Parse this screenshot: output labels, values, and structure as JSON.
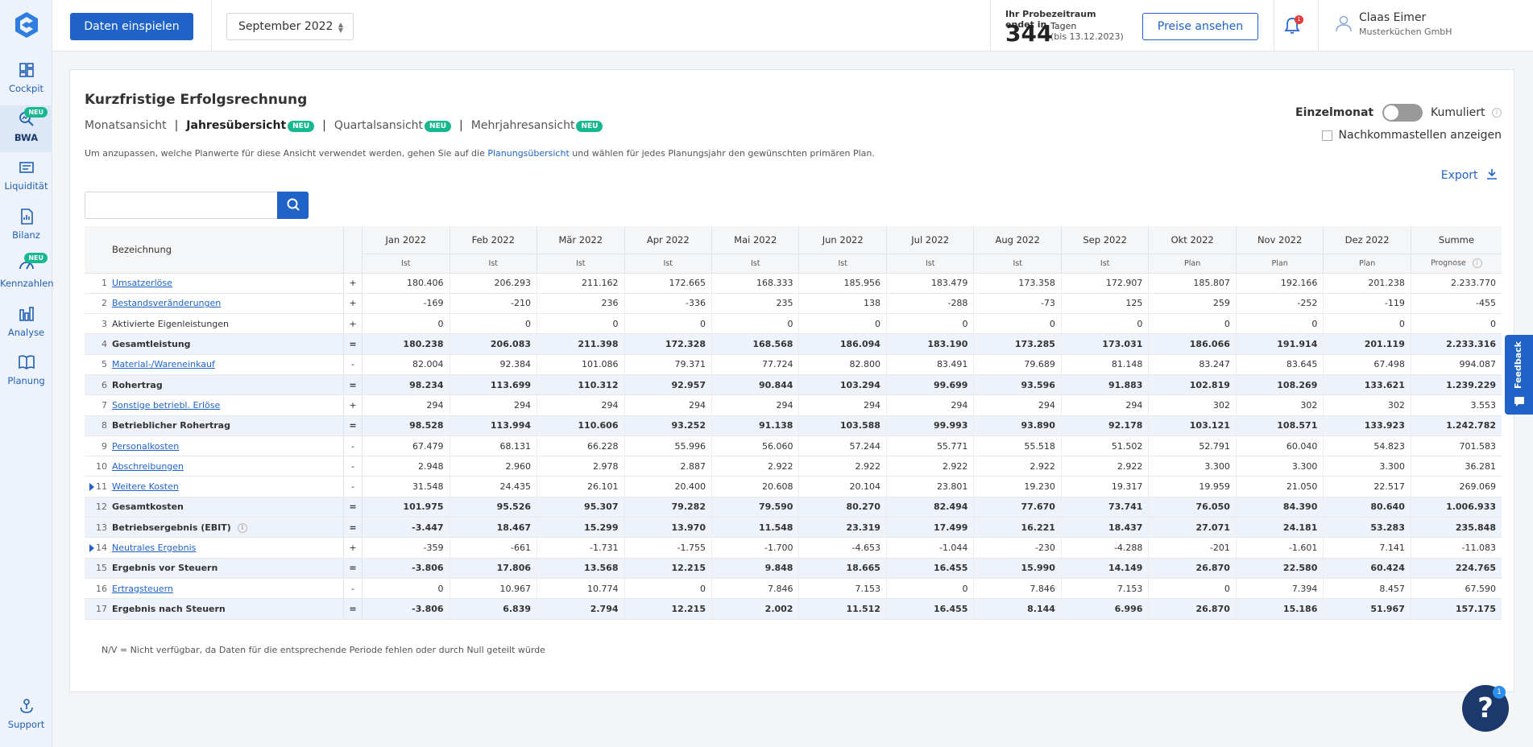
{
  "sidebar": {
    "items": [
      {
        "label": "Cockpit",
        "icon": "dashboard-icon"
      },
      {
        "label": "BWA",
        "icon": "search-chart-icon",
        "badge": "NEU",
        "active": true
      },
      {
        "label": "Liquidität",
        "icon": "cash-icon"
      },
      {
        "label": "Bilanz",
        "icon": "document-icon"
      },
      {
        "label": "Kennzahlen",
        "icon": "gauge-icon",
        "badge": "NEU"
      },
      {
        "label": "Analyse",
        "icon": "bar-chart-icon"
      },
      {
        "label": "Planung",
        "icon": "book-icon"
      }
    ],
    "support": "Support"
  },
  "topbar": {
    "import_button": "Daten einspielen",
    "month": "September 2022",
    "trial_line1": "Ihr Probezeitraum endet in",
    "trial_days": "344",
    "trial_unit": "Tagen",
    "trial_date": "(bis 13.12.2023)",
    "prices_button": "Preise ansehen",
    "notifications": "1",
    "user_name": "Claas Eimer",
    "user_company": "Musterküchen GmbH"
  },
  "report": {
    "title": "Kurzfristige Erfolgsrechnung",
    "views": [
      {
        "label": "Monatsansicht",
        "badge": ""
      },
      {
        "label": "Jahresübersicht",
        "badge": "NEU",
        "active": true
      },
      {
        "label": "Quartalsansicht",
        "badge": "NEU"
      },
      {
        "label": "Mehrjahresansicht",
        "badge": "NEU"
      }
    ],
    "hint_before": "Um anzupassen, welche Planwerte für diese Ansicht verwendet werden, gehen Sie auf die ",
    "hint_link": "Planungsübersicht",
    "hint_after": " und wählen für jedes Planungsjahr den gewünschten primären Plan.",
    "toggle_left": "Einzelmonat",
    "toggle_right": "Kumuliert",
    "decimals_label": "Nachkommastellen anzeigen",
    "export_label": "Export",
    "footnote": "N/V = Nicht verfügbar, da Daten für die entsprechende Periode fehlen oder durch Null geteilt würde"
  },
  "table": {
    "header_label": "Bezeichnung",
    "columns": [
      "Jan 2022",
      "Feb 2022",
      "Mär 2022",
      "Apr 2022",
      "Mai 2022",
      "Jun 2022",
      "Jul 2022",
      "Aug 2022",
      "Sep 2022",
      "Okt 2022",
      "Nov 2022",
      "Dez 2022",
      "Summe"
    ],
    "subheaders": [
      "Ist",
      "Ist",
      "Ist",
      "Ist",
      "Ist",
      "Ist",
      "Ist",
      "Ist",
      "Ist",
      "Plan",
      "Plan",
      "Plan",
      "Prognose"
    ],
    "rows": [
      {
        "idx": "1",
        "label": "Umsatzerlöse",
        "op": "+",
        "link": true,
        "values": [
          "180.406",
          "206.293",
          "211.162",
          "172.665",
          "168.333",
          "185.956",
          "183.479",
          "173.358",
          "172.907",
          "185.807",
          "192.166",
          "201.238",
          "2.233.770"
        ]
      },
      {
        "idx": "2",
        "label": "Bestandsveränderungen",
        "op": "+",
        "link": true,
        "values": [
          "-169",
          "-210",
          "236",
          "-336",
          "235",
          "138",
          "-288",
          "-73",
          "125",
          "259",
          "-252",
          "-119",
          "-455"
        ]
      },
      {
        "idx": "3",
        "label": "Aktivierte Eigenleistungen",
        "op": "+",
        "link": false,
        "values": [
          "0",
          "0",
          "0",
          "0",
          "0",
          "0",
          "0",
          "0",
          "0",
          "0",
          "0",
          "0",
          "0"
        ]
      },
      {
        "idx": "4",
        "label": "Gesamtleistung",
        "op": "=",
        "total": true,
        "values": [
          "180.238",
          "206.083",
          "211.398",
          "172.328",
          "168.568",
          "186.094",
          "183.190",
          "173.285",
          "173.031",
          "186.066",
          "191.914",
          "201.119",
          "2.233.316"
        ]
      },
      {
        "idx": "5",
        "label": "Material-/Wareneinkauf",
        "op": "-",
        "link": true,
        "values": [
          "82.004",
          "92.384",
          "101.086",
          "79.371",
          "77.724",
          "82.800",
          "83.491",
          "79.689",
          "81.148",
          "83.247",
          "83.645",
          "67.498",
          "994.087"
        ]
      },
      {
        "idx": "6",
        "label": "Rohertrag",
        "op": "=",
        "total": true,
        "values": [
          "98.234",
          "113.699",
          "110.312",
          "92.957",
          "90.844",
          "103.294",
          "99.699",
          "93.596",
          "91.883",
          "102.819",
          "108.269",
          "133.621",
          "1.239.229"
        ]
      },
      {
        "idx": "7",
        "label": "Sonstige betriebl. Erlöse",
        "op": "+",
        "link": true,
        "values": [
          "294",
          "294",
          "294",
          "294",
          "294",
          "294",
          "294",
          "294",
          "294",
          "302",
          "302",
          "302",
          "3.553"
        ]
      },
      {
        "idx": "8",
        "label": "Betrieblicher Rohertrag",
        "op": "=",
        "total": true,
        "values": [
          "98.528",
          "113.994",
          "110.606",
          "93.252",
          "91.138",
          "103.588",
          "99.993",
          "93.890",
          "92.178",
          "103.121",
          "108.571",
          "133.923",
          "1.242.782"
        ]
      },
      {
        "idx": "9",
        "label": "Personalkosten",
        "op": "-",
        "link": true,
        "values": [
          "67.479",
          "68.131",
          "66.228",
          "55.996",
          "56.060",
          "57.244",
          "55.771",
          "55.518",
          "51.502",
          "52.791",
          "60.040",
          "54.823",
          "701.583"
        ]
      },
      {
        "idx": "10",
        "label": "Abschreibungen",
        "op": "-",
        "link": true,
        "values": [
          "2.948",
          "2.960",
          "2.978",
          "2.887",
          "2.922",
          "2.922",
          "2.922",
          "2.922",
          "2.922",
          "3.300",
          "3.300",
          "3.300",
          "36.281"
        ]
      },
      {
        "idx": "11",
        "label": "Weitere Kosten",
        "op": "-",
        "link": true,
        "expand": true,
        "values": [
          "31.548",
          "24.435",
          "26.101",
          "20.400",
          "20.608",
          "20.104",
          "23.801",
          "19.230",
          "19.317",
          "19.959",
          "21.050",
          "22.517",
          "269.069"
        ]
      },
      {
        "idx": "12",
        "label": "Gesamtkosten",
        "op": "=",
        "total": true,
        "values": [
          "101.975",
          "95.526",
          "95.307",
          "79.282",
          "79.590",
          "80.270",
          "82.494",
          "77.670",
          "73.741",
          "76.050",
          "84.390",
          "80.640",
          "1.006.933"
        ]
      },
      {
        "idx": "13",
        "label": "Betriebsergebnis (EBIT)",
        "op": "=",
        "total": true,
        "info": true,
        "values": [
          "-3.447",
          "18.467",
          "15.299",
          "13.970",
          "11.548",
          "23.319",
          "17.499",
          "16.221",
          "18.437",
          "27.071",
          "24.181",
          "53.283",
          "235.848"
        ]
      },
      {
        "idx": "14",
        "label": "Neutrales Ergebnis",
        "op": "+",
        "link": true,
        "expand": true,
        "values": [
          "-359",
          "-661",
          "-1.731",
          "-1.755",
          "-1.700",
          "-4.653",
          "-1.044",
          "-230",
          "-4.288",
          "-201",
          "-1.601",
          "7.141",
          "-11.083"
        ]
      },
      {
        "idx": "15",
        "label": "Ergebnis vor Steuern",
        "op": "=",
        "total": true,
        "values": [
          "-3.806",
          "17.806",
          "13.568",
          "12.215",
          "9.848",
          "18.665",
          "16.455",
          "15.990",
          "14.149",
          "26.870",
          "22.580",
          "60.424",
          "224.765"
        ]
      },
      {
        "idx": "16",
        "label": "Ertragsteuern",
        "op": "-",
        "link": true,
        "values": [
          "0",
          "10.967",
          "10.774",
          "0",
          "7.846",
          "7.153",
          "0",
          "7.846",
          "7.153",
          "0",
          "7.394",
          "8.457",
          "67.590"
        ]
      },
      {
        "idx": "17",
        "label": "Ergebnis nach Steuern",
        "op": "=",
        "total": true,
        "values": [
          "-3.806",
          "6.839",
          "2.794",
          "12.215",
          "2.002",
          "11.512",
          "16.455",
          "8.144",
          "6.996",
          "26.870",
          "15.186",
          "51.967",
          "157.175"
        ]
      }
    ]
  },
  "feedback_label": "Feedback",
  "help_badge": "1",
  "colors": {
    "primary": "#1f63c9",
    "badge": "#17b890",
    "sidebar": "#eef3fb"
  }
}
